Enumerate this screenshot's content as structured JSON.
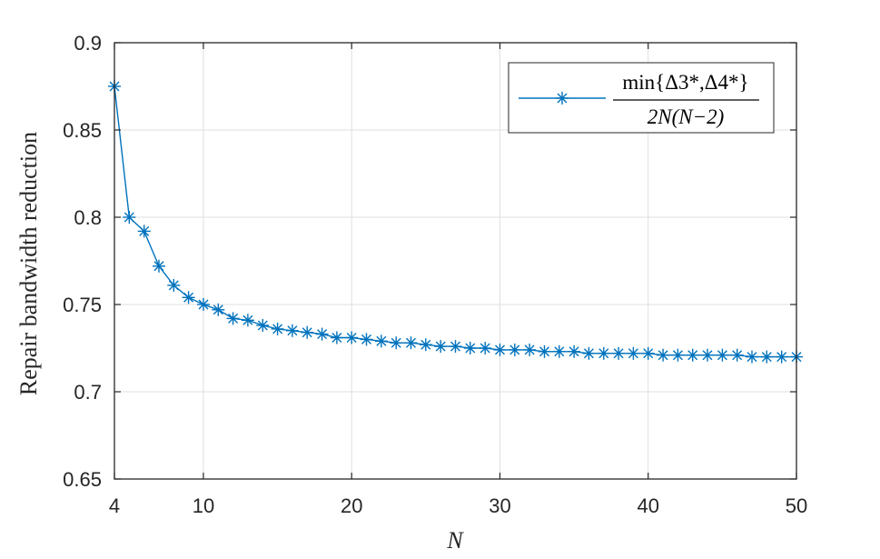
{
  "chart_data": {
    "type": "line",
    "xlabel": "N",
    "ylabel": "Repair bandwidth reduction",
    "xlim": [
      4,
      50
    ],
    "ylim": [
      0.65,
      0.9
    ],
    "xticks": [
      4,
      10,
      20,
      30,
      40,
      50
    ],
    "yticks": [
      0.65,
      0.7,
      0.75,
      0.8,
      0.85,
      0.9
    ],
    "xtick_labels": [
      "4",
      "10",
      "20",
      "30",
      "40",
      "50"
    ],
    "ytick_labels": [
      "0.65",
      "0.7",
      "0.75",
      "0.8",
      "0.85",
      "0.9"
    ],
    "grid": true,
    "legend_position": "top-right",
    "legend": {
      "numerator": "min{Δ3*,Δ4*}",
      "denominator": "2N(N−2)"
    },
    "series": [
      {
        "color": "#0072BD",
        "marker": "asterisk",
        "x": [
          4,
          5,
          6,
          7,
          8,
          9,
          10,
          11,
          12,
          13,
          14,
          15,
          16,
          17,
          18,
          19,
          20,
          21,
          22,
          23,
          24,
          25,
          26,
          27,
          28,
          29,
          30,
          31,
          32,
          33,
          34,
          35,
          36,
          37,
          38,
          39,
          40,
          41,
          42,
          43,
          44,
          45,
          46,
          47,
          48,
          49,
          50
        ],
        "y": [
          0.875,
          0.8,
          0.792,
          0.772,
          0.761,
          0.754,
          0.75,
          0.747,
          0.742,
          0.741,
          0.738,
          0.736,
          0.735,
          0.734,
          0.733,
          0.731,
          0.731,
          0.73,
          0.729,
          0.728,
          0.728,
          0.727,
          0.726,
          0.726,
          0.725,
          0.725,
          0.724,
          0.724,
          0.724,
          0.723,
          0.723,
          0.723,
          0.722,
          0.722,
          0.722,
          0.722,
          0.722,
          0.721,
          0.721,
          0.721,
          0.721,
          0.721,
          0.721,
          0.72,
          0.72,
          0.72,
          0.72
        ]
      }
    ]
  }
}
